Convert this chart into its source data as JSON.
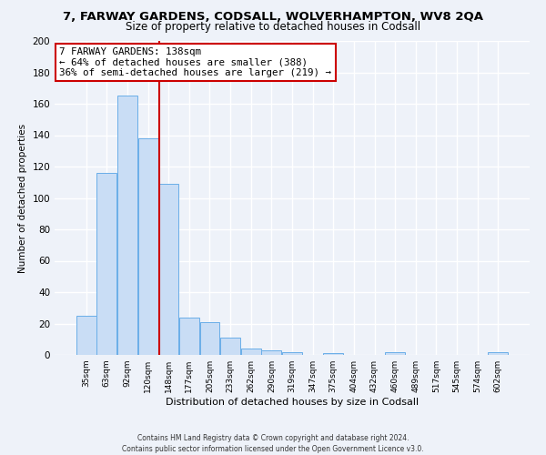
{
  "title": "7, FARWAY GARDENS, CODSALL, WOLVERHAMPTON, WV8 2QA",
  "subtitle": "Size of property relative to detached houses in Codsall",
  "xlabel": "Distribution of detached houses by size in Codsall",
  "ylabel": "Number of detached properties",
  "bar_labels": [
    "35sqm",
    "63sqm",
    "92sqm",
    "120sqm",
    "148sqm",
    "177sqm",
    "205sqm",
    "233sqm",
    "262sqm",
    "290sqm",
    "319sqm",
    "347sqm",
    "375sqm",
    "404sqm",
    "432sqm",
    "460sqm",
    "489sqm",
    "517sqm",
    "545sqm",
    "574sqm",
    "602sqm"
  ],
  "bar_values": [
    25,
    116,
    165,
    138,
    109,
    24,
    21,
    11,
    4,
    3,
    2,
    0,
    1,
    0,
    0,
    2,
    0,
    0,
    0,
    0,
    2
  ],
  "bar_color": "#c9ddf5",
  "bar_edgecolor": "#6aaee8",
  "annotation_box_text": "7 FARWAY GARDENS: 138sqm\n← 64% of detached houses are smaller (388)\n36% of semi-detached houses are larger (219) →",
  "annotation_box_color": "#ffffff",
  "annotation_box_edgecolor": "#cc0000",
  "vline_color": "#cc0000",
  "vline_x": 3.55,
  "ylim": [
    0,
    200
  ],
  "yticks": [
    0,
    20,
    40,
    60,
    80,
    100,
    120,
    140,
    160,
    180,
    200
  ],
  "footer_line1": "Contains HM Land Registry data © Crown copyright and database right 2024.",
  "footer_line2": "Contains public sector information licensed under the Open Government Licence v3.0.",
  "bg_color": "#eef2f9",
  "grid_color": "#ffffff",
  "title_fontsize": 9.5,
  "subtitle_fontsize": 8.5,
  "bar_width": 0.97
}
